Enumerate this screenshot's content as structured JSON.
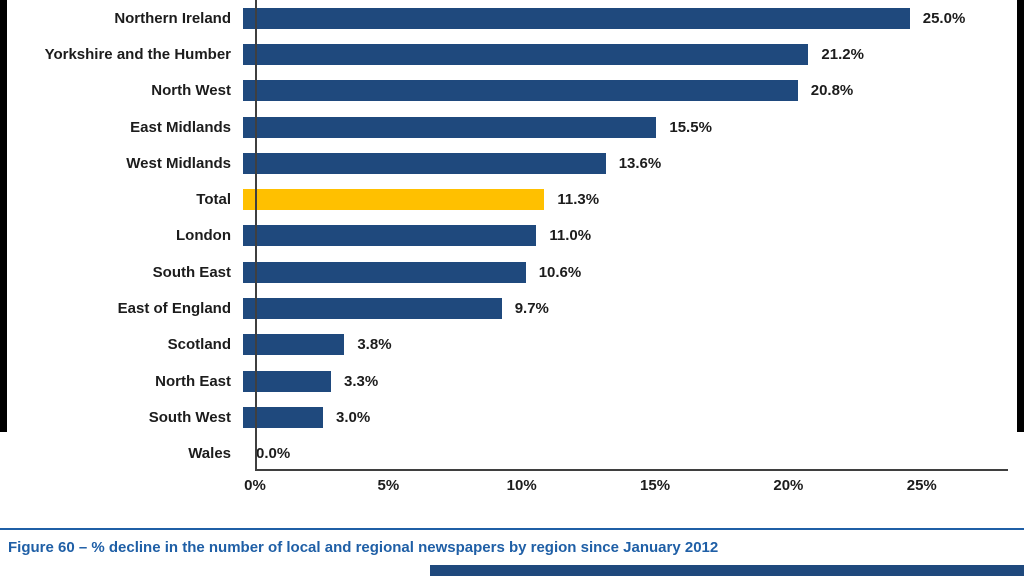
{
  "chart_data": {
    "type": "bar",
    "orientation": "horizontal",
    "title": "",
    "caption": "Figure 60 – % decline in the number of local and regional newspapers by region since January 2012",
    "categories": [
      "Northern Ireland",
      "Yorkshire and the Humber",
      "North West",
      "East Midlands",
      "West Midlands",
      "Total",
      "London",
      "South East",
      "East of England",
      "Scotland",
      "North East",
      "South West",
      "Wales"
    ],
    "values": [
      25.0,
      21.2,
      20.8,
      15.5,
      13.6,
      11.3,
      11.0,
      10.6,
      9.7,
      3.8,
      3.3,
      3.0,
      0.0
    ],
    "value_labels": [
      "25.0%",
      "21.2%",
      "20.8%",
      "15.5%",
      "13.6%",
      "11.3%",
      "11.0%",
      "10.6%",
      "9.7%",
      "3.8%",
      "3.3%",
      "3.0%",
      "0.0%"
    ],
    "highlight_category": "Total",
    "bar_color": "#1f497d",
    "highlight_color": "#ffc000",
    "xlim": [
      0,
      25
    ],
    "x_ticks": [
      "0%",
      "5%",
      "10%",
      "15%",
      "20%",
      "25%"
    ],
    "x_tick_values": [
      0,
      5,
      10,
      15,
      20,
      25
    ],
    "grid": false,
    "legend": "none",
    "xlabel": "",
    "ylabel": ""
  },
  "colors": {
    "bar_blue": "#1f497d",
    "highlight_yellow": "#ffc000",
    "caption_blue": "#1f5fa6",
    "axis_gray": "#3f3f3f",
    "text_dark": "#1c1c1c",
    "background": "#ffffff"
  }
}
